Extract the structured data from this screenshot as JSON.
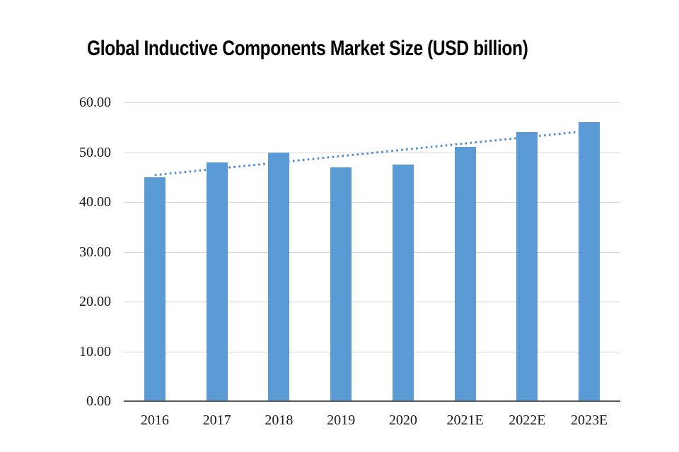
{
  "chart_data": {
    "type": "bar",
    "title": "Global Inductive Components Market Size (USD billion)",
    "categories": [
      "2016",
      "2017",
      "2018",
      "2019",
      "2020",
      "2021E",
      "2022E",
      "2023E"
    ],
    "values": [
      45,
      48,
      50,
      47,
      47.5,
      51,
      54,
      56
    ],
    "trendline": {
      "type": "linear",
      "style": "dotted",
      "start_value": 45.4,
      "end_value": 54.3
    },
    "y_axis": {
      "min": 0,
      "max": 60,
      "tick_interval": 10,
      "tick_labels": [
        "0.00",
        "10.00",
        "20.00",
        "30.00",
        "40.00",
        "50.00",
        "60.00"
      ]
    },
    "grid": "horizontal",
    "legend": "none",
    "colors": {
      "bar": "#5B9BD5",
      "trendline": "#4A8BD0",
      "gridline": "#D6D6D6",
      "axis_line": "#595959",
      "tick_text": "#1A1A1A",
      "title_text": "#000000"
    }
  }
}
